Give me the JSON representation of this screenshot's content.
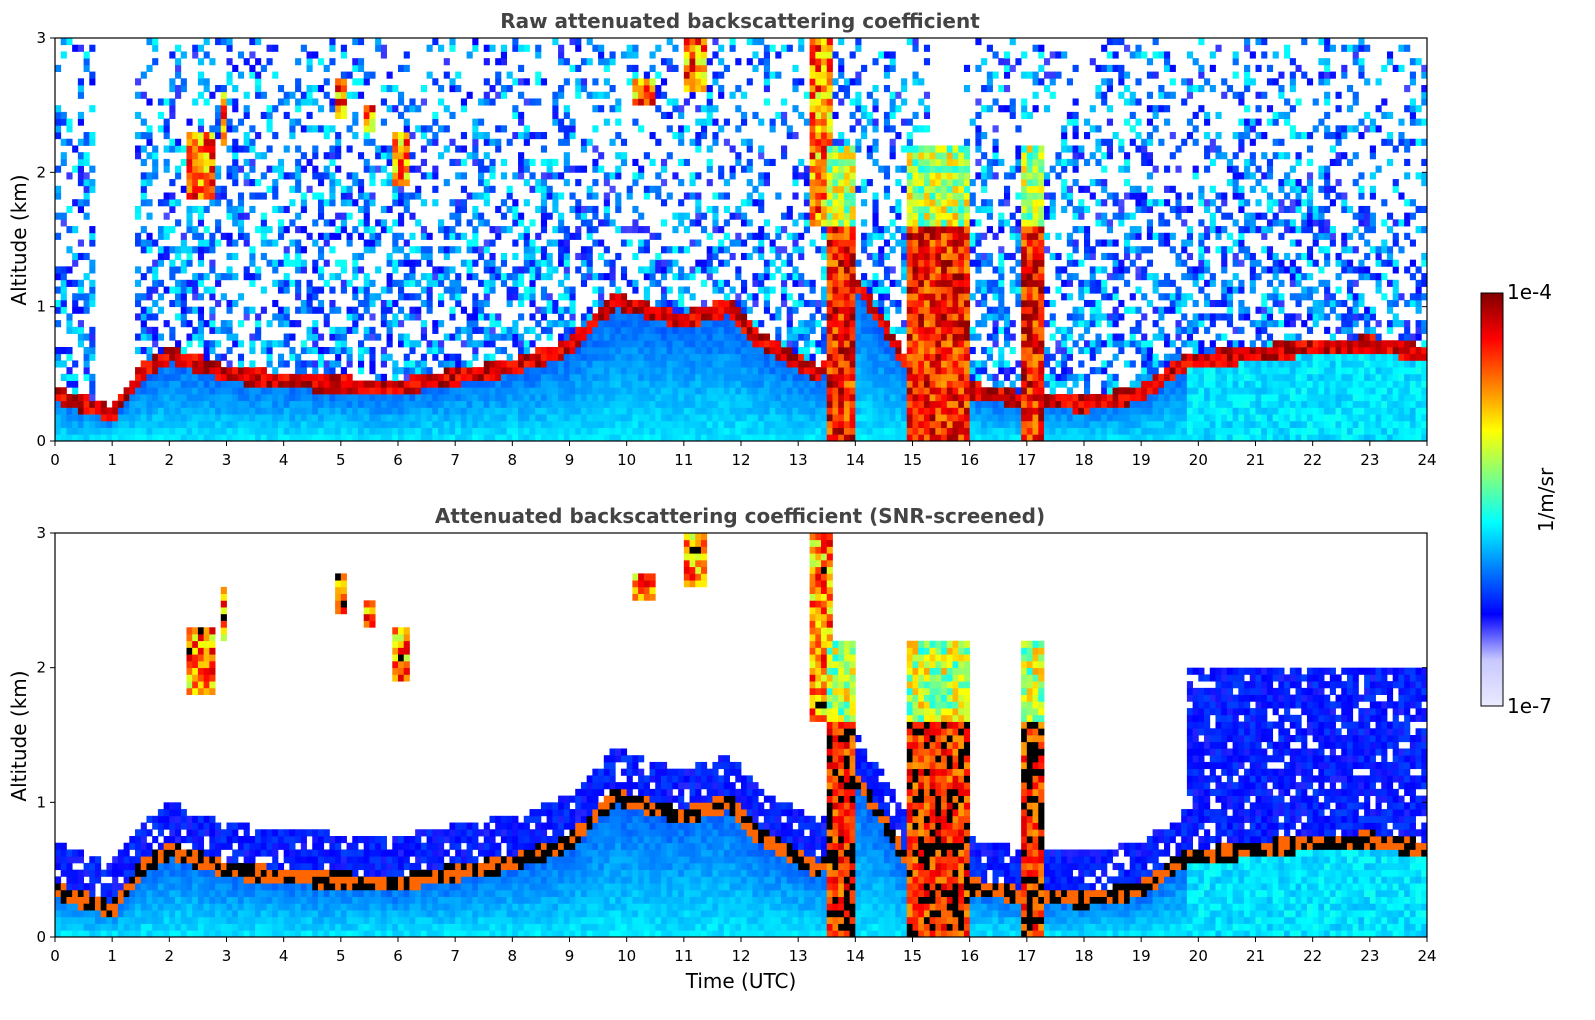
{
  "chart_data": [
    {
      "type": "heatmap",
      "title": "Raw attenuated backscattering coefficient",
      "xlabel": "",
      "ylabel": "Altitude (km)",
      "xlim": [
        0,
        24
      ],
      "ylim": [
        0,
        3
      ],
      "x_ticks": [
        "0",
        "1",
        "2",
        "3",
        "4",
        "5",
        "6",
        "7",
        "8",
        "9",
        "10",
        "11",
        "12",
        "13",
        "14",
        "15",
        "16",
        "17",
        "18",
        "19",
        "20",
        "21",
        "22",
        "23",
        "24"
      ],
      "y_ticks": [
        "0",
        "1",
        "2",
        "3"
      ],
      "screened": false,
      "features": {
        "boundary_layer_top_km": [
          [
            0,
            0.35
          ],
          [
            1,
            0.2
          ],
          [
            1.5,
            0.5
          ],
          [
            2,
            0.65
          ],
          [
            3,
            0.5
          ],
          [
            4,
            0.45
          ],
          [
            5,
            0.42
          ],
          [
            6,
            0.4
          ],
          [
            7,
            0.48
          ],
          [
            8,
            0.55
          ],
          [
            9,
            0.7
          ],
          [
            9.8,
            1.05
          ],
          [
            10.5,
            0.95
          ],
          [
            11,
            0.9
          ],
          [
            11.8,
            1.0
          ],
          [
            12.3,
            0.75
          ],
          [
            13.4,
            0.5
          ],
          [
            14,
            1.2
          ],
          [
            15,
            0.5
          ],
          [
            16,
            0.38
          ],
          [
            17,
            0.3
          ],
          [
            18,
            0.28
          ],
          [
            19,
            0.35
          ],
          [
            19.8,
            0.6
          ],
          [
            20,
            0.6
          ],
          [
            22,
            0.7
          ],
          [
            23,
            0.72
          ],
          [
            24,
            0.65
          ]
        ],
        "thick_cloud_columns_utc": [
          [
            13.55,
            14.0
          ],
          [
            14.9,
            16.0
          ],
          [
            16.9,
            17.3
          ]
        ],
        "elevated_layers": [
          [
            2.3,
            2.8,
            1.8,
            2.3
          ],
          [
            2.9,
            3.0,
            2.2,
            2.6
          ],
          [
            4.9,
            5.1,
            2.4,
            2.7
          ],
          [
            5.4,
            5.6,
            2.3,
            2.5
          ],
          [
            5.9,
            6.2,
            1.9,
            2.3
          ],
          [
            10.1,
            10.5,
            2.5,
            2.7
          ],
          [
            11.0,
            11.4,
            2.6,
            3.0
          ],
          [
            13.2,
            13.6,
            1.6,
            3.0
          ]
        ],
        "gap_columns_utc": [
          [
            0.7,
            1.35
          ],
          [
            15.3,
            15.85
          ]
        ]
      }
    },
    {
      "type": "heatmap",
      "title": "Attenuated backscattering coefficient (SNR-screened)",
      "xlabel": "Time (UTC)",
      "ylabel": "Altitude (km)",
      "xlim": [
        0,
        24
      ],
      "ylim": [
        0,
        3
      ],
      "x_ticks": [
        "0",
        "1",
        "2",
        "3",
        "4",
        "5",
        "6",
        "7",
        "8",
        "9",
        "10",
        "11",
        "12",
        "13",
        "14",
        "15",
        "16",
        "17",
        "18",
        "19",
        "20",
        "21",
        "22",
        "23",
        "24"
      ],
      "y_ticks": [
        "0",
        "1",
        "2",
        "3"
      ],
      "screened": true
    }
  ],
  "colorbar": {
    "min_label": "1e-7",
    "max_label": "1e-4",
    "label": "1/m/sr",
    "scale": "log",
    "colormap": "jet",
    "colors": [
      "#eaeaff",
      "#c8c8ff",
      "#0000ff",
      "#0080ff",
      "#00ffff",
      "#80ff80",
      "#ffff00",
      "#ff8000",
      "#ff0000",
      "#800000"
    ]
  }
}
